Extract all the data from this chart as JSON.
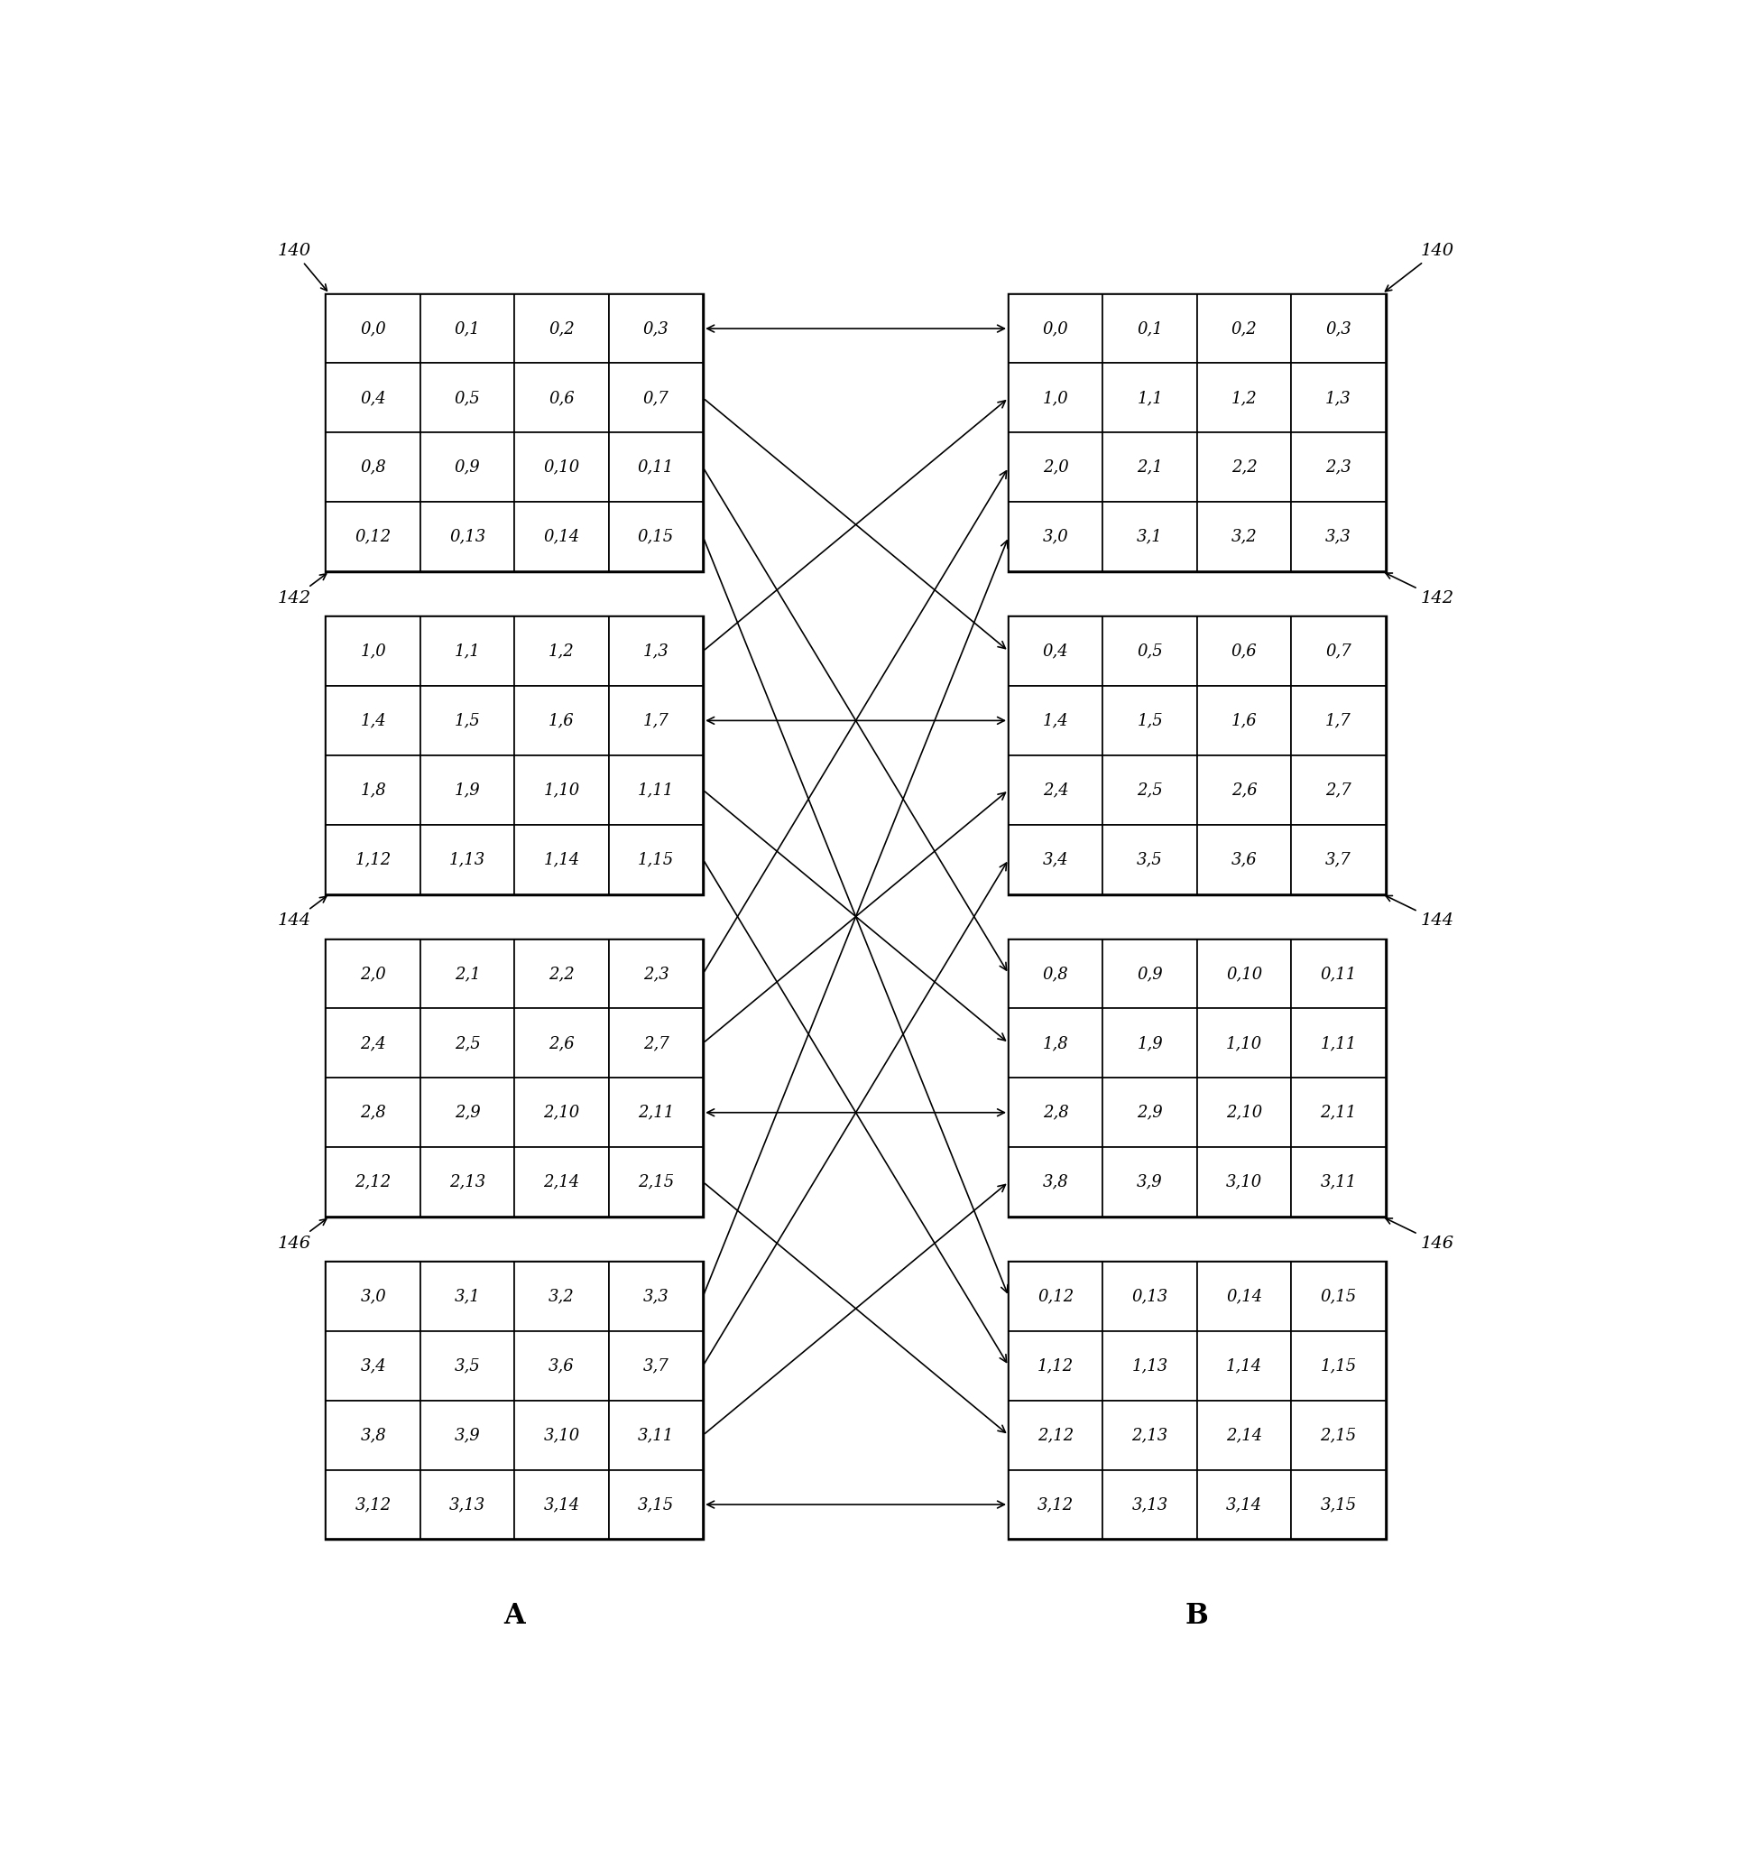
{
  "fig_width": 19.33,
  "fig_height": 20.72,
  "bg_color": "#ffffff",
  "left_matrices": [
    {
      "rows": [
        [
          "0,0",
          "0,1",
          "0,2",
          "0,3"
        ],
        [
          "0,4",
          "0,5",
          "0,6",
          "0,7"
        ],
        [
          "0,8",
          "0,9",
          "0,10",
          "0,11"
        ],
        [
          "0,12",
          "0,13",
          "0,14",
          "0,15"
        ]
      ]
    },
    {
      "rows": [
        [
          "1,0",
          "1,1",
          "1,2",
          "1,3"
        ],
        [
          "1,4",
          "1,5",
          "1,6",
          "1,7"
        ],
        [
          "1,8",
          "1,9",
          "1,10",
          "1,11"
        ],
        [
          "1,12",
          "1,13",
          "1,14",
          "1,15"
        ]
      ]
    },
    {
      "rows": [
        [
          "2,0",
          "2,1",
          "2,2",
          "2,3"
        ],
        [
          "2,4",
          "2,5",
          "2,6",
          "2,7"
        ],
        [
          "2,8",
          "2,9",
          "2,10",
          "2,11"
        ],
        [
          "2,12",
          "2,13",
          "2,14",
          "2,15"
        ]
      ]
    },
    {
      "rows": [
        [
          "3,0",
          "3,1",
          "3,2",
          "3,3"
        ],
        [
          "3,4",
          "3,5",
          "3,6",
          "3,7"
        ],
        [
          "3,8",
          "3,9",
          "3,10",
          "3,11"
        ],
        [
          "3,12",
          "3,13",
          "3,14",
          "3,15"
        ]
      ]
    }
  ],
  "right_matrices": [
    {
      "rows": [
        [
          "0,0",
          "0,1",
          "0,2",
          "0,3"
        ],
        [
          "1,0",
          "1,1",
          "1,2",
          "1,3"
        ],
        [
          "2,0",
          "2,1",
          "2,2",
          "2,3"
        ],
        [
          "3,0",
          "3,1",
          "3,2",
          "3,3"
        ]
      ]
    },
    {
      "rows": [
        [
          "0,4",
          "0,5",
          "0,6",
          "0,7"
        ],
        [
          "1,4",
          "1,5",
          "1,6",
          "1,7"
        ],
        [
          "2,4",
          "2,5",
          "2,6",
          "2,7"
        ],
        [
          "3,4",
          "3,5",
          "3,6",
          "3,7"
        ]
      ]
    },
    {
      "rows": [
        [
          "0,8",
          "0,9",
          "0,10",
          "0,11"
        ],
        [
          "1,8",
          "1,9",
          "1,10",
          "1,11"
        ],
        [
          "2,8",
          "2,9",
          "2,10",
          "2,11"
        ],
        [
          "3,8",
          "3,9",
          "3,10",
          "3,11"
        ]
      ]
    },
    {
      "rows": [
        [
          "0,12",
          "0,13",
          "0,14",
          "0,15"
        ],
        [
          "1,12",
          "1,13",
          "1,14",
          "1,15"
        ],
        [
          "2,12",
          "2,13",
          "2,14",
          "2,15"
        ],
        [
          "3,12",
          "3,13",
          "3,14",
          "3,15"
        ]
      ]
    }
  ],
  "left_labels": [
    {
      "text": "140",
      "mat": 0,
      "corner": "top-left"
    },
    {
      "text": "142",
      "mat": 0,
      "corner": "bottom-left"
    },
    {
      "text": "144",
      "mat": 1,
      "corner": "bottom-left"
    },
    {
      "text": "146",
      "mat": 2,
      "corner": "bottom-left"
    }
  ],
  "right_labels": [
    {
      "text": "140",
      "mat": 0,
      "corner": "top-right"
    },
    {
      "text": "142",
      "mat": 0,
      "corner": "bottom-right"
    },
    {
      "text": "144",
      "mat": 1,
      "corner": "bottom-right"
    },
    {
      "text": "146",
      "mat": 2,
      "corner": "bottom-right"
    }
  ],
  "label_A": "A",
  "label_B": "B"
}
